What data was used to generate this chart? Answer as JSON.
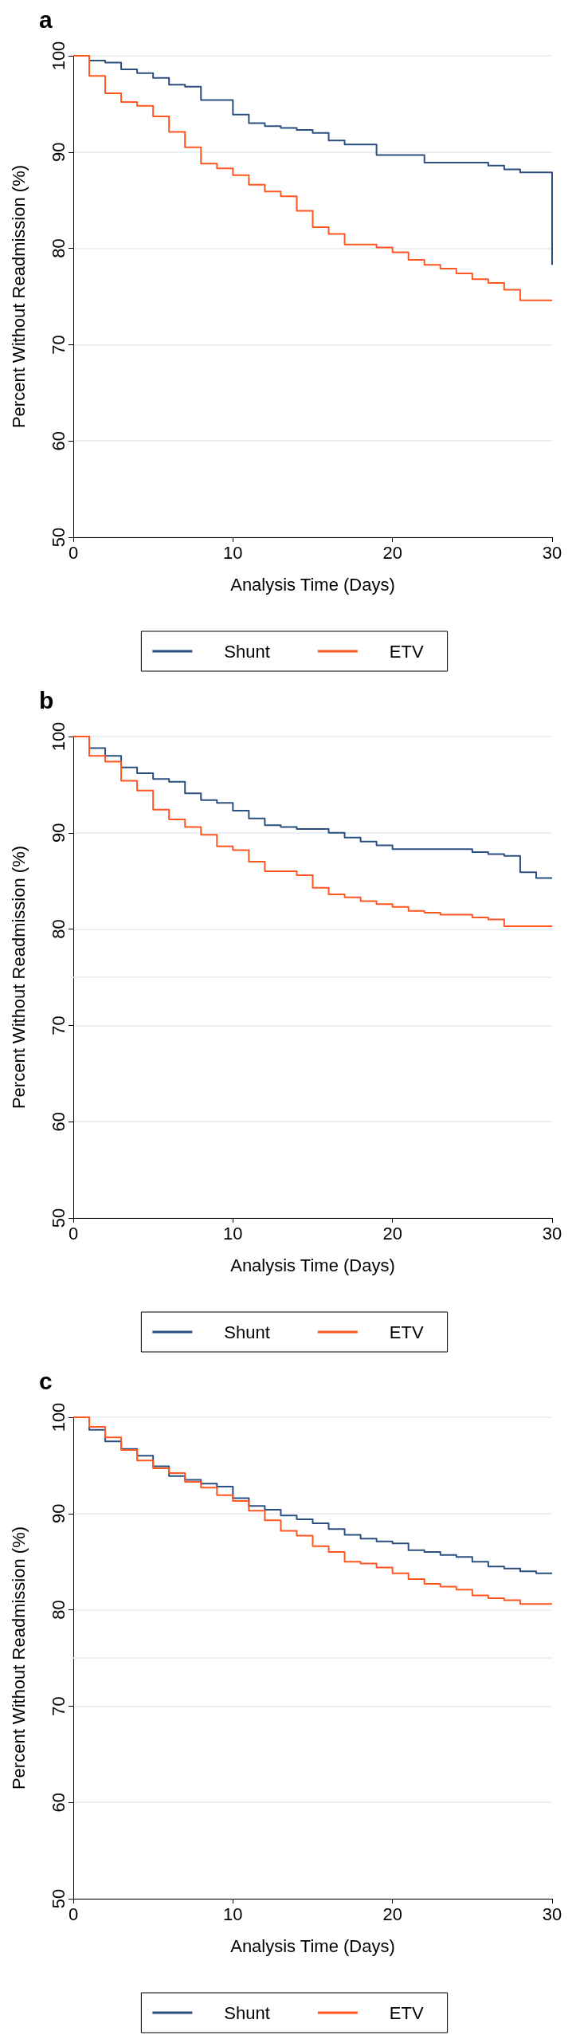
{
  "chart_data": [
    {
      "type": "step",
      "title": "a",
      "xlabel": "Analysis Time (Days)",
      "ylabel": "Percent Without Readmission (%)",
      "x": [
        0,
        1,
        2,
        3,
        4,
        5,
        6,
        7,
        8,
        9,
        10,
        11,
        12,
        13,
        14,
        15,
        16,
        17,
        18,
        19,
        20,
        21,
        22,
        23,
        24,
        25,
        26,
        27,
        28,
        29,
        30
      ],
      "xlim": [
        0,
        30
      ],
      "xticks": [
        0,
        10,
        20,
        30
      ],
      "ylim": [
        50,
        100
      ],
      "yticks": [
        50,
        60,
        70,
        80,
        90,
        100
      ],
      "grid": "y",
      "legend": "bottom",
      "series": [
        {
          "name": "Shunt",
          "color": "#2b4f7e",
          "values": [
            100,
            99.5,
            99.3,
            98.6,
            98.2,
            97.7,
            97.0,
            96.8,
            95.4,
            95.4,
            93.9,
            93.0,
            92.7,
            92.5,
            92.3,
            92.0,
            91.2,
            90.8,
            90.8,
            89.7,
            89.7,
            89.7,
            88.9,
            88.9,
            88.9,
            88.9,
            88.6,
            88.2,
            87.9,
            87.9,
            78.3
          ]
        },
        {
          "name": "ETV",
          "color": "#ff5722",
          "values": [
            100,
            97.9,
            96.1,
            95.2,
            94.8,
            93.7,
            92.1,
            90.5,
            88.8,
            88.3,
            87.6,
            86.6,
            85.9,
            85.4,
            83.9,
            82.2,
            81.5,
            80.4,
            80.4,
            80.1,
            79.6,
            78.8,
            78.3,
            77.9,
            77.4,
            76.8,
            76.4,
            75.7,
            74.6,
            74.6,
            74.6
          ]
        }
      ]
    },
    {
      "type": "step",
      "title": "b",
      "xlabel": "Analysis Time (Days)",
      "ylabel": "Percent Without Readmission (%)",
      "x": [
        0,
        1,
        2,
        3,
        4,
        5,
        6,
        7,
        8,
        9,
        10,
        11,
        12,
        13,
        14,
        15,
        16,
        17,
        18,
        19,
        20,
        21,
        22,
        23,
        24,
        25,
        26,
        27,
        28,
        29,
        30
      ],
      "xlim": [
        0,
        30
      ],
      "xticks": [
        0,
        10,
        20,
        30
      ],
      "ylim": [
        50,
        100
      ],
      "yticks": [
        50,
        60,
        70,
        80,
        90,
        100
      ],
      "grid": "y",
      "legend": "bottom",
      "ref_lines": [
        {
          "axis": "y",
          "value": 75,
          "color": "#e3ecf0"
        }
      ],
      "series": [
        {
          "name": "Shunt",
          "color": "#2b4f7e",
          "values": [
            100,
            98.8,
            98.0,
            96.8,
            96.2,
            95.6,
            95.3,
            94.1,
            93.4,
            93.1,
            92.3,
            91.5,
            90.8,
            90.6,
            90.4,
            90.4,
            90.0,
            89.5,
            89.1,
            88.7,
            88.3,
            88.3,
            88.3,
            88.3,
            88.3,
            88.0,
            87.8,
            87.6,
            85.9,
            85.3,
            85.3
          ]
        },
        {
          "name": "ETV",
          "color": "#ff5722",
          "values": [
            100,
            98.0,
            97.4,
            95.4,
            94.4,
            92.4,
            91.4,
            90.6,
            89.8,
            88.6,
            88.2,
            87.0,
            86.0,
            86.0,
            85.6,
            84.3,
            83.6,
            83.3,
            82.9,
            82.6,
            82.3,
            81.9,
            81.7,
            81.5,
            81.5,
            81.2,
            81.0,
            80.3,
            80.3,
            80.3,
            80.3
          ]
        }
      ]
    },
    {
      "type": "step",
      "title": "c",
      "xlabel": "Analysis Time (Days)",
      "ylabel": "Percent Without Readmission (%)",
      "x": [
        0,
        1,
        2,
        3,
        4,
        5,
        6,
        7,
        8,
        9,
        10,
        11,
        12,
        13,
        14,
        15,
        16,
        17,
        18,
        19,
        20,
        21,
        22,
        23,
        24,
        25,
        26,
        27,
        28,
        29,
        30
      ],
      "xlim": [
        0,
        30
      ],
      "xticks": [
        0,
        10,
        20,
        30
      ],
      "ylim": [
        50,
        100
      ],
      "yticks": [
        50,
        60,
        70,
        80,
        90,
        100
      ],
      "grid": "y",
      "legend": "bottom",
      "ref_lines": [
        {
          "axis": "y",
          "value": 75,
          "color": "#e3ecf0"
        }
      ],
      "series": [
        {
          "name": "Shunt",
          "color": "#2b4f7e",
          "values": [
            100,
            98.7,
            97.5,
            96.7,
            96.0,
            94.9,
            93.9,
            93.5,
            93.1,
            92.8,
            91.6,
            90.8,
            90.4,
            89.8,
            89.4,
            89.0,
            88.4,
            87.8,
            87.4,
            87.1,
            86.9,
            86.2,
            86.0,
            85.7,
            85.5,
            85.0,
            84.5,
            84.3,
            84.0,
            83.8,
            83.8
          ]
        },
        {
          "name": "ETV",
          "color": "#ff5722",
          "values": [
            100,
            99.0,
            97.9,
            96.6,
            95.5,
            94.7,
            94.2,
            93.3,
            92.7,
            91.9,
            91.3,
            90.3,
            89.3,
            88.2,
            87.7,
            86.6,
            86.0,
            85.0,
            84.8,
            84.4,
            83.8,
            83.2,
            82.7,
            82.4,
            82.1,
            81.5,
            81.2,
            81.0,
            80.6,
            80.6,
            80.6
          ]
        }
      ]
    }
  ]
}
